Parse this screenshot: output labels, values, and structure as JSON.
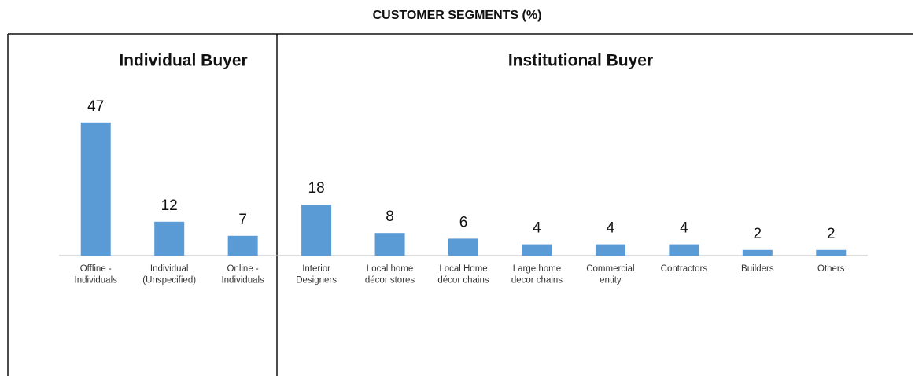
{
  "chart_data": {
    "type": "bar",
    "title": "CUSTOMER SEGMENTS (%)",
    "groups": [
      "Individual Buyer",
      "Institutional Buyer"
    ],
    "categories": [
      "Offline -\nIndividuals",
      "Individual\n(Unspecified)",
      "Online -\nIndividuals",
      "Interior\nDesigners",
      "Local home\ndécor stores",
      "Local Home\ndécor chains",
      "Large home\ndecor chains",
      "Commercial\nentity",
      "Contractors",
      "Builders",
      "Others"
    ],
    "values": [
      47,
      12,
      7,
      18,
      8,
      6,
      4,
      4,
      4,
      2,
      2
    ],
    "color": "#5b9bd5"
  }
}
